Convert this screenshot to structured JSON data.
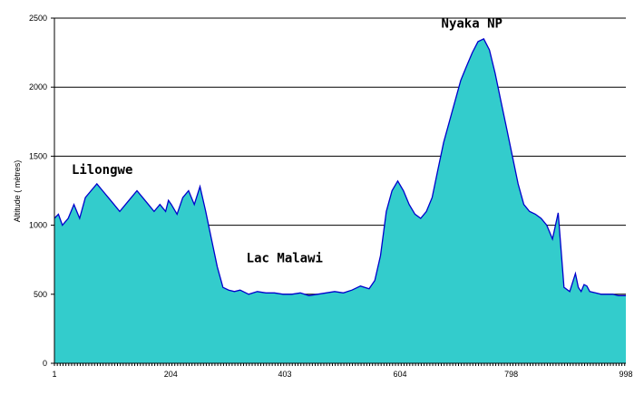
{
  "chart_data": {
    "type": "area",
    "ylabel": "Altitude ( mètres)",
    "xlabel": "",
    "xlim": [
      1,
      998
    ],
    "ylim": [
      0,
      2500
    ],
    "xticks": [
      1,
      204,
      403,
      604,
      798,
      998
    ],
    "yticks": [
      0,
      500,
      1000,
      1500,
      2000,
      2500
    ],
    "grid": "horizontal",
    "colors": {
      "fill": "#33CCCC",
      "line": "#0000CC",
      "grid": "#000000",
      "background": "#ffffff"
    },
    "annotations": [
      {
        "text": "Lilongwe",
        "x": 31,
        "y": 1370
      },
      {
        "text": "Lac Malawi",
        "x": 336,
        "y": 730
      },
      {
        "text": "Nyaka NP",
        "x": 676,
        "y": 2430
      }
    ],
    "series": [
      {
        "x": [
          1,
          8,
          15,
          25,
          35,
          45,
          55,
          65,
          75,
          85,
          95,
          105,
          115,
          125,
          135,
          145,
          155,
          165,
          175,
          185,
          195,
          200,
          205,
          215,
          225,
          235,
          245,
          255,
          265,
          275,
          285,
          295,
          305,
          315,
          325,
          340,
          355,
          370,
          385,
          400,
          415,
          430,
          445,
          460,
          475,
          490,
          505,
          520,
          535,
          550,
          560,
          570,
          580,
          590,
          600,
          610,
          620,
          630,
          640,
          650,
          660,
          670,
          680,
          690,
          700,
          710,
          720,
          730,
          740,
          750,
          760,
          770,
          780,
          790,
          800,
          810,
          820,
          830,
          840,
          850,
          860,
          870,
          880,
          890,
          900,
          910,
          915,
          920,
          925,
          930,
          935,
          945,
          955,
          965,
          975,
          985,
          998
        ],
        "y": [
          1050,
          1080,
          1000,
          1050,
          1150,
          1050,
          1200,
          1250,
          1300,
          1250,
          1200,
          1150,
          1100,
          1150,
          1200,
          1250,
          1200,
          1150,
          1100,
          1150,
          1100,
          1180,
          1150,
          1080,
          1200,
          1250,
          1150,
          1280,
          1100,
          900,
          700,
          550,
          530,
          520,
          530,
          500,
          520,
          510,
          510,
          500,
          500,
          510,
          490,
          500,
          510,
          520,
          510,
          530,
          560,
          540,
          600,
          780,
          1100,
          1250,
          1320,
          1250,
          1150,
          1080,
          1050,
          1100,
          1200,
          1400,
          1600,
          1750,
          1900,
          2050,
          2150,
          2250,
          2330,
          2350,
          2270,
          2100,
          1900,
          1700,
          1500,
          1300,
          1150,
          1100,
          1080,
          1050,
          1000,
          900,
          1090,
          550,
          520,
          650,
          550,
          520,
          570,
          560,
          520,
          510,
          500,
          500,
          500,
          490,
          490
        ]
      }
    ]
  }
}
